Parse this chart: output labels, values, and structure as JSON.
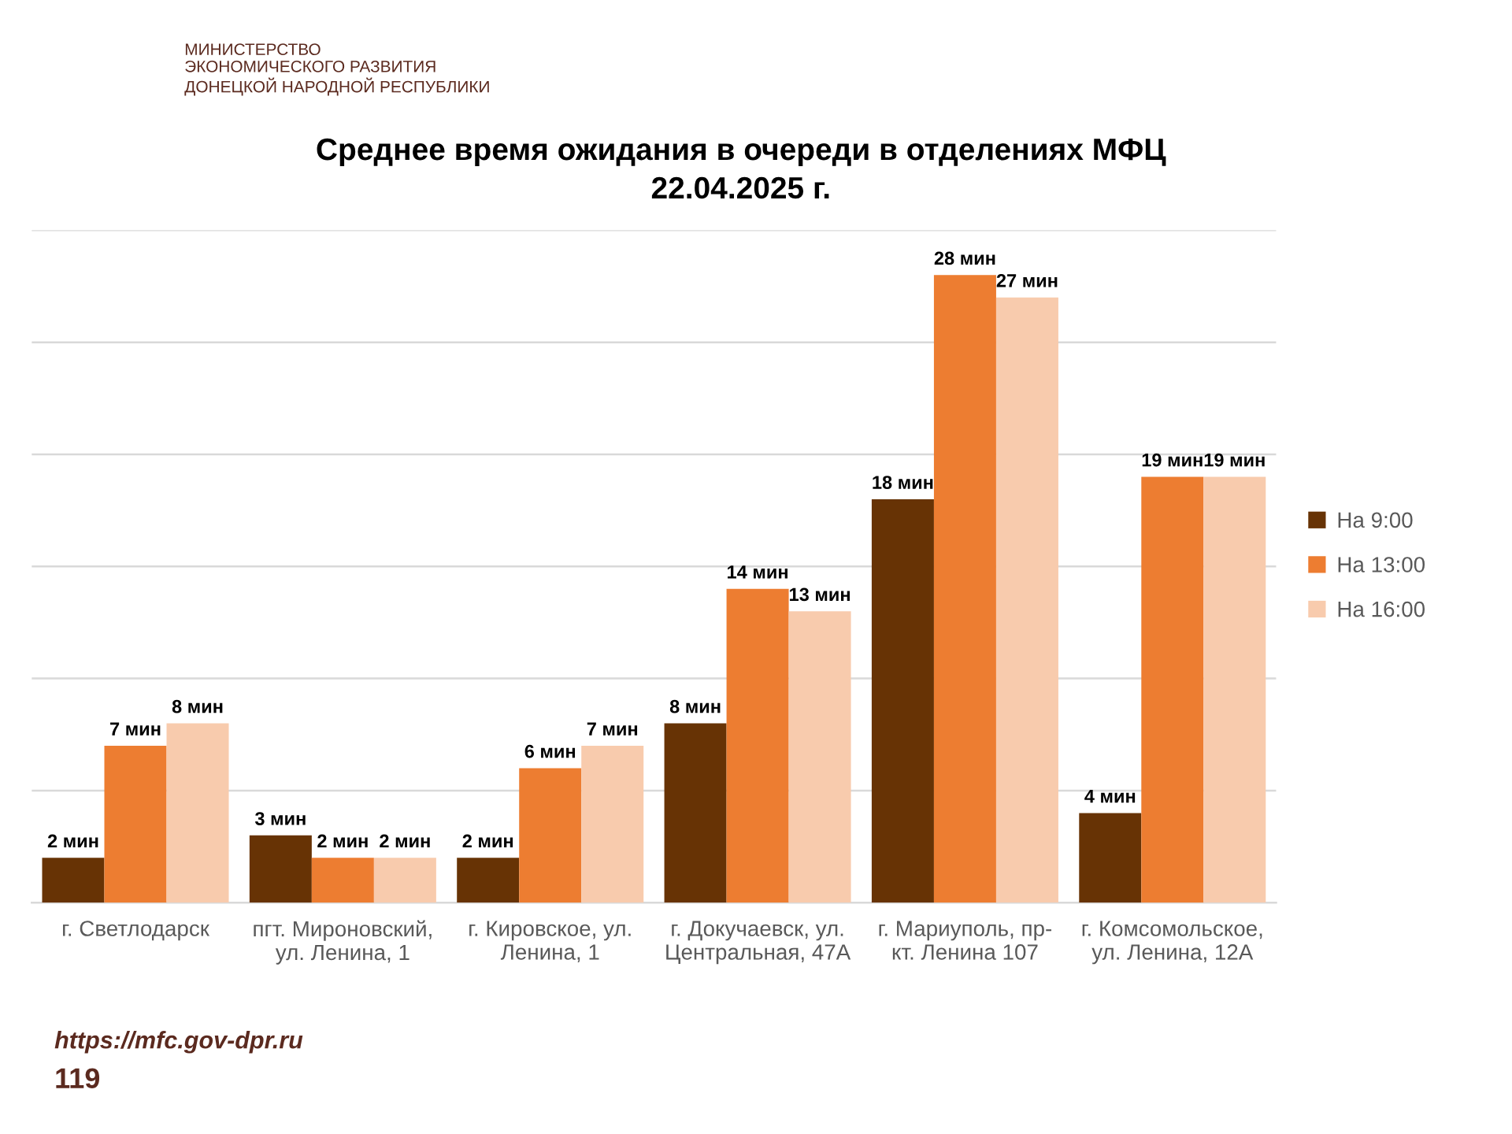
{
  "chart_data": {
    "type": "bar",
    "title": "Среднее время ожидания в очереди в отделениях МФЦ\n22.04.2025 г.",
    "categories": [
      "г. Светлодарск",
      "пгт. Мироновский,\nул. Ленина, 1",
      "г. Кировское, ул.\nЛенина, 1",
      "г. Докучаевск, ул.\nЦентральная, 47А",
      "г. Мариуполь, пр-\nкт. Ленина 107",
      "г. Комсомольское,\nул. Ленина, 12А"
    ],
    "series": [
      {
        "name": "На 9:00",
        "color": "#673305",
        "values": [
          2,
          3,
          2,
          8,
          18,
          4
        ],
        "value_labels": [
          "2 мин",
          "3 мин",
          "2 мин",
          "8 мин",
          "18 мин",
          "4 мин"
        ]
      },
      {
        "name": "На 13:00",
        "color": "#ed7d31",
        "values": [
          7,
          2,
          6,
          14,
          28,
          19
        ],
        "value_labels": [
          "7 мин",
          "2 мин",
          "6 мин",
          "14 мин",
          "28 мин",
          "19 мин"
        ]
      },
      {
        "name": "На 16:00",
        "color": "#f8cbad",
        "values": [
          8,
          2,
          7,
          13,
          27,
          19
        ],
        "value_labels": [
          "8 мин",
          "2 мин",
          "7 мин",
          "13 мин",
          "27 мин",
          "19 мин"
        ]
      }
    ],
    "ylim": [
      0,
      30
    ],
    "yticks": [
      {
        "value": 0,
        "label": null
      },
      {
        "value": 5,
        "label": null
      },
      {
        "value": 10,
        "label": null
      },
      {
        "value": 15,
        "label": null
      },
      {
        "value": 20,
        "label": null
      },
      {
        "value": 25,
        "label": null
      },
      {
        "value": 30,
        "label": null
      }
    ],
    "tick_labels": "x",
    "grid": "y",
    "legend": "right",
    "annotations": [
      "МИНИСТЕРСТВО\nЭКОНОМИЧЕСКОГО РАЗВИТИЯ\nДОНЕЦКОЙ НАРОДНОЙ РЕСПУБЛИКИ",
      "https://mfc.gov-dpr.ru",
      "119"
    ]
  }
}
